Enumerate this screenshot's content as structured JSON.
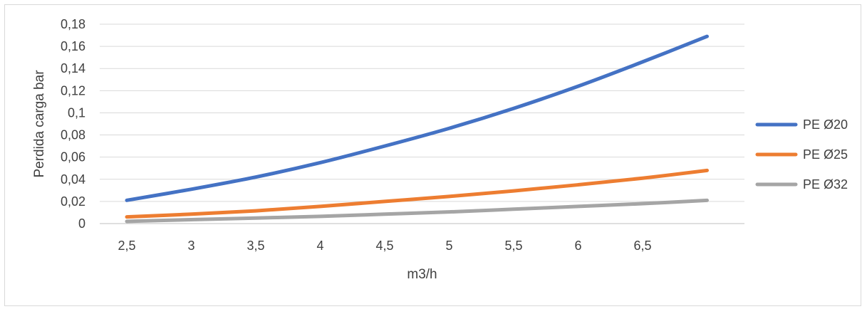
{
  "chart_data": {
    "type": "line",
    "title": "",
    "xlabel": "m3/h",
    "ylabel": "Perdida carga bar",
    "x_tick_labels": [
      "2,5",
      "3",
      "3,5",
      "4",
      "4,5",
      "5",
      "5,5",
      "6",
      "6,5"
    ],
    "y_tick_labels": [
      "0",
      "0,02",
      "0,04",
      "0,06",
      "0,08",
      "0,1",
      "0,12",
      "0,14",
      "0,16",
      "0,18"
    ],
    "ylim": [
      0,
      0.18
    ],
    "grid": true,
    "legend_position": "right",
    "x": [
      2.5,
      3,
      3.5,
      4,
      4.5,
      5,
      5.5,
      6,
      6.5,
      7
    ],
    "series": [
      {
        "name": "PE Ø20",
        "color": "#4472c4",
        "values": [
          0.021,
          0.031,
          0.042,
          0.055,
          0.07,
          0.086,
          0.104,
          0.124,
          0.146,
          0.169
        ]
      },
      {
        "name": "PE Ø25",
        "color": "#ed7d31",
        "values": [
          0.006,
          0.0085,
          0.0115,
          0.0155,
          0.02,
          0.0245,
          0.0295,
          0.035,
          0.041,
          0.048
        ]
      },
      {
        "name": "PE Ø32",
        "color": "#a5a5a5",
        "values": [
          0.002,
          0.0035,
          0.005,
          0.0065,
          0.0085,
          0.0105,
          0.013,
          0.0155,
          0.018,
          0.021
        ]
      }
    ]
  }
}
